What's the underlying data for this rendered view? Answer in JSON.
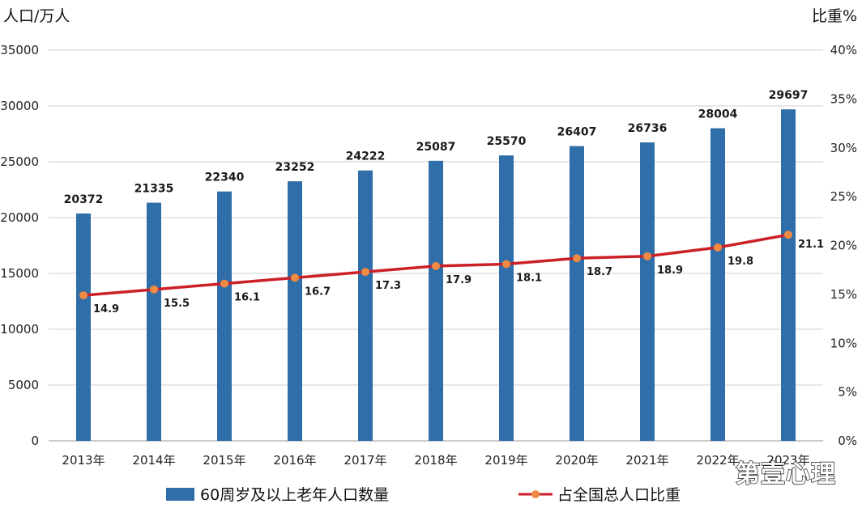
{
  "chart_data": {
    "type": "bar",
    "categories": [
      "2013年",
      "2014年",
      "2015年",
      "2016年",
      "2017年",
      "2018年",
      "2019年",
      "2020年",
      "2021年",
      "2022年",
      "2023年"
    ],
    "series": [
      {
        "name": "60周岁及以上老年人口数量",
        "type": "bar",
        "axis": "left",
        "color": "#2f6ea8",
        "values": [
          20372,
          21335,
          22340,
          23252,
          24222,
          25087,
          25570,
          26407,
          26736,
          28004,
          29697
        ]
      },
      {
        "name": "占全国总人口比重",
        "type": "line",
        "axis": "right",
        "color": "#cc2027",
        "marker_color": "#ef8a43",
        "values": [
          14.9,
          15.5,
          16.1,
          16.7,
          17.3,
          17.9,
          18.1,
          18.7,
          18.9,
          19.8,
          21.1
        ]
      }
    ],
    "ylabel": "人口/万人",
    "y2label": "比重%",
    "ylim": [
      0,
      35000
    ],
    "y2lim": [
      0,
      40
    ],
    "yticks": [
      "0",
      "5000",
      "10000",
      "15000",
      "20000",
      "25000",
      "30000",
      "35000"
    ],
    "y2ticks": [
      "0%",
      "5%",
      "10%",
      "15%",
      "20%",
      "25%",
      "30%",
      "35%",
      "40%"
    ],
    "grid": true,
    "legend_position": "bottom"
  },
  "watermark": "第壹心理"
}
